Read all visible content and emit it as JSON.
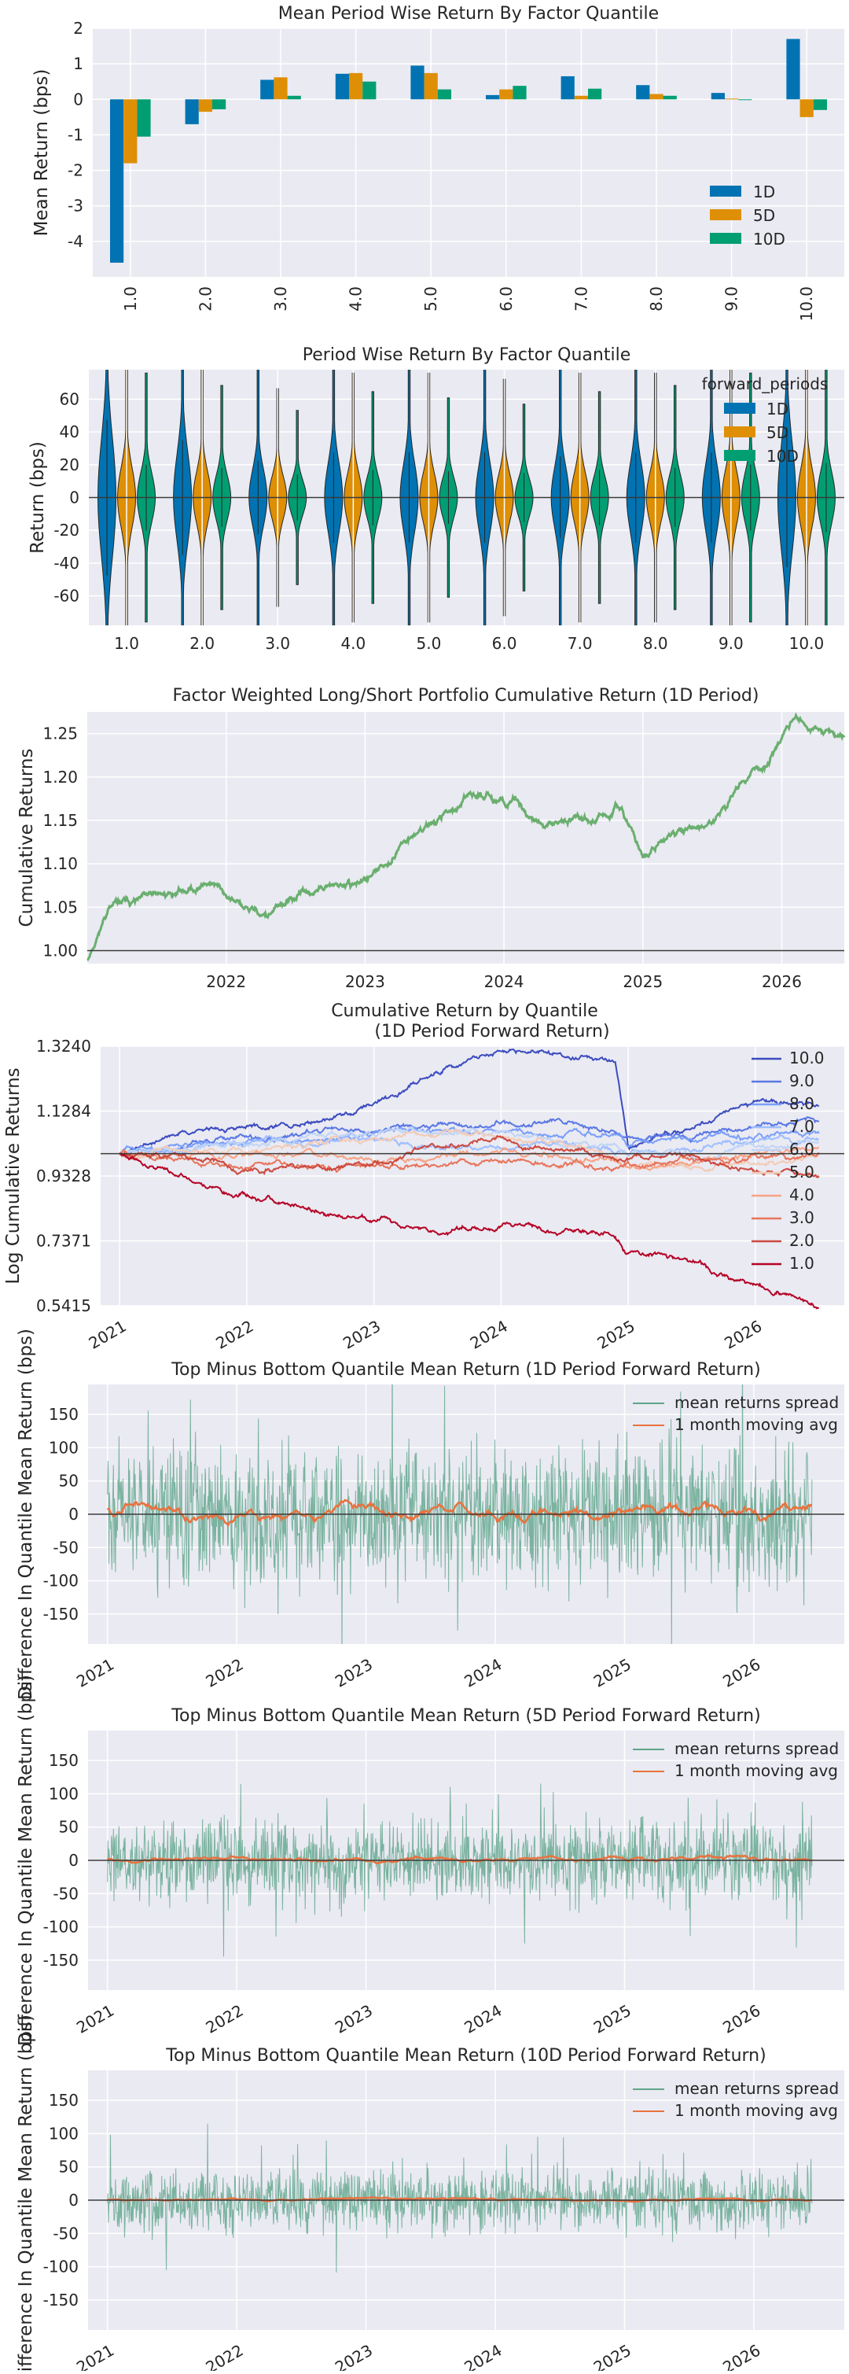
{
  "colors": {
    "panel_bg": "#eaeaf2",
    "grid": "#ffffff",
    "series_1D": "#0173b2",
    "series_5D": "#de8f05",
    "series_10D": "#029e73",
    "cum_line": "#6aaf6f",
    "spread_line": "#5ea58a",
    "ma_line": "#e8723d",
    "zero_line": "#3a3a3a"
  },
  "chart_data": [
    {
      "type": "bar",
      "title": "Mean Period Wise Return By Factor Quantile",
      "xlabel": "",
      "ylabel": "Mean Return (bps)",
      "categories": [
        "1.0",
        "2.0",
        "3.0",
        "4.0",
        "5.0",
        "6.0",
        "7.0",
        "8.0",
        "9.0",
        "10.0"
      ],
      "series": [
        {
          "name": "1D",
          "values": [
            -4.6,
            -0.7,
            0.55,
            0.72,
            0.95,
            0.12,
            0.65,
            0.4,
            0.18,
            1.7
          ]
        },
        {
          "name": "5D",
          "values": [
            -1.8,
            -0.35,
            0.62,
            0.74,
            0.74,
            0.28,
            0.1,
            0.15,
            0.02,
            -0.5
          ]
        },
        {
          "name": "10D",
          "values": [
            -1.05,
            -0.28,
            0.1,
            0.5,
            0.28,
            0.38,
            0.3,
            0.1,
            0.0,
            -0.3
          ]
        }
      ],
      "ylim": [
        -5,
        2
      ],
      "yticks": [
        -4,
        -3,
        -2,
        -1,
        0,
        1,
        2
      ],
      "legend": "bottom-right"
    },
    {
      "type": "violin",
      "title": "Period Wise Return By Factor Quantile",
      "xlabel": "",
      "ylabel": "Return (bps)",
      "legend_title": "forward_periods",
      "categories": [
        "1.0",
        "2.0",
        "3.0",
        "4.0",
        "5.0",
        "6.0",
        "7.0",
        "8.0",
        "9.0",
        "10.0"
      ],
      "series": [
        {
          "name": "1D",
          "spread": [
            95,
            70,
            45,
            55,
            55,
            55,
            50,
            55,
            55,
            85
          ]
        },
        {
          "name": "5D",
          "spread": [
            48,
            42,
            35,
            40,
            40,
            38,
            40,
            40,
            45,
            48
          ]
        },
        {
          "name": "10D",
          "spread": [
            40,
            36,
            28,
            34,
            32,
            30,
            34,
            36,
            40,
            42
          ]
        }
      ],
      "ylim": [
        -78,
        78
      ],
      "yticks": [
        -60,
        -40,
        -20,
        0,
        20,
        40,
        60
      ],
      "legend": "top-right"
    },
    {
      "type": "line",
      "title": "Factor Weighted Long/Short Portfolio Cumulative Return (1D Period)",
      "xlabel": "",
      "ylabel": "Cumulative Returns",
      "xlim": [
        2021.0,
        2026.45
      ],
      "ylim": [
        0.985,
        1.275
      ],
      "xticks": [
        "2022",
        "2023",
        "2024",
        "2025",
        "2026"
      ],
      "yticks": [
        "1.00",
        "1.05",
        "1.10",
        "1.15",
        "1.20",
        "1.25"
      ],
      "x": [
        2021.0,
        2021.15,
        2021.3,
        2021.5,
        2021.7,
        2021.9,
        2022.1,
        2022.3,
        2022.5,
        2022.7,
        2022.9,
        2023.1,
        2023.3,
        2023.5,
        2023.7,
        2023.9,
        2024.1,
        2024.3,
        2024.5,
        2024.7,
        2024.85,
        2025.0,
        2025.2,
        2025.5,
        2025.7,
        2025.9,
        2026.1,
        2026.3,
        2026.45
      ],
      "values": [
        0.99,
        1.05,
        1.055,
        1.06,
        1.07,
        1.08,
        1.05,
        1.04,
        1.06,
        1.07,
        1.075,
        1.09,
        1.13,
        1.15,
        1.17,
        1.18,
        1.17,
        1.14,
        1.16,
        1.15,
        1.16,
        1.11,
        1.13,
        1.15,
        1.19,
        1.22,
        1.27,
        1.25,
        1.245
      ]
    },
    {
      "type": "line",
      "title": "Cumulative Return by Quantile",
      "subtitle": "(1D Period Forward Return)",
      "xlabel": "",
      "ylabel": "Log Cumulative Returns",
      "log_scale": true,
      "xlim": [
        2020.85,
        2026.7
      ],
      "ylim": [
        0.5415,
        1.324
      ],
      "xticks": [
        "2021",
        "2022",
        "2023",
        "2024",
        "2025",
        "2026"
      ],
      "yticks": [
        "0.5415",
        "0.7371",
        "0.9328",
        "1.1284",
        "1.3240"
      ],
      "x": [
        2021.0,
        2021.5,
        2022.0,
        2022.5,
        2023.0,
        2023.5,
        2024.0,
        2024.5,
        2024.9,
        2025.0,
        2025.5,
        2026.0,
        2026.5
      ],
      "series": [
        {
          "name": "10.0",
          "values": [
            1.0,
            1.07,
            1.08,
            1.1,
            1.15,
            1.25,
            1.32,
            1.29,
            1.28,
            1.03,
            1.07,
            1.16,
            1.15
          ]
        },
        {
          "name": "9.0",
          "values": [
            1.0,
            1.03,
            1.04,
            1.06,
            1.07,
            1.09,
            1.08,
            1.1,
            1.06,
            1.04,
            1.06,
            1.09,
            1.1
          ]
        },
        {
          "name": "8.0",
          "values": [
            1.0,
            1.02,
            1.03,
            1.05,
            1.06,
            1.07,
            1.07,
            1.06,
            1.05,
            1.03,
            1.04,
            1.06,
            1.07
          ]
        },
        {
          "name": "7.0",
          "values": [
            1.0,
            1.01,
            1.04,
            1.03,
            1.04,
            1.03,
            1.02,
            1.03,
            1.01,
            1.0,
            1.02,
            1.04,
            1.03
          ]
        },
        {
          "name": "6.0",
          "values": [
            1.0,
            1.02,
            1.03,
            1.05,
            1.06,
            1.07,
            1.06,
            1.04,
            1.02,
            1.0,
            1.0,
            1.02,
            1.03
          ]
        },
        {
          "name": "5.0",
          "values": [
            1.0,
            1.01,
            1.0,
            1.02,
            1.04,
            1.06,
            1.05,
            1.03,
            1.0,
            0.97,
            0.96,
            0.97,
            0.99
          ]
        },
        {
          "name": "4.0",
          "values": [
            1.0,
            0.99,
            1.0,
            1.0,
            0.98,
            0.99,
            1.0,
            0.99,
            0.98,
            0.96,
            0.97,
            0.99,
            1.02
          ]
        },
        {
          "name": "3.0",
          "values": [
            1.0,
            0.98,
            0.97,
            0.96,
            0.96,
            0.97,
            0.98,
            0.97,
            0.96,
            0.97,
            0.98,
            0.99,
            1.0
          ]
        },
        {
          "name": "2.0",
          "values": [
            1.0,
            0.99,
            0.96,
            0.95,
            0.98,
            1.02,
            1.03,
            1.0,
            0.98,
            0.99,
            1.0,
            0.95,
            0.92
          ]
        },
        {
          "name": "1.0",
          "values": [
            1.0,
            0.93,
            0.86,
            0.83,
            0.8,
            0.77,
            0.78,
            0.77,
            0.75,
            0.7,
            0.68,
            0.6,
            0.545
          ]
        }
      ],
      "legend": "top-right"
    },
    {
      "type": "line",
      "title": "Top Minus Bottom Quantile Mean Return (1D Period Forward Return)",
      "xlabel": "",
      "ylabel": "Difference In Quantile Mean Return (bps)",
      "xlim": [
        2020.85,
        2026.7
      ],
      "ylim": [
        -195,
        195
      ],
      "xticks": [
        "2021",
        "2022",
        "2023",
        "2024",
        "2025",
        "2026"
      ],
      "yticks": [
        -150,
        -100,
        -50,
        0,
        50,
        100,
        150
      ],
      "spread_amplitude": 190,
      "ma_amplitude": 30,
      "series": [
        {
          "name": "mean returns spread"
        },
        {
          "name": "1 month moving avg"
        }
      ],
      "legend": "top-right"
    },
    {
      "type": "line",
      "title": "Top Minus Bottom Quantile Mean Return (5D Period Forward Return)",
      "xlabel": "",
      "ylabel": "Difference In Quantile Mean Return (bps)",
      "xlim": [
        2020.85,
        2026.7
      ],
      "ylim": [
        -195,
        195
      ],
      "xticks": [
        "2021",
        "2022",
        "2023",
        "2024",
        "2025",
        "2026"
      ],
      "yticks": [
        -150,
        -100,
        -50,
        0,
        50,
        100,
        150
      ],
      "spread_amplitude": 110,
      "ma_amplitude": 10,
      "series": [
        {
          "name": "mean returns spread"
        },
        {
          "name": "1 month moving avg"
        }
      ],
      "legend": "top-right"
    },
    {
      "type": "line",
      "title": "Top Minus Bottom Quantile Mean Return (10D Period Forward Return)",
      "xlabel": "",
      "ylabel": "Difference In Quantile Mean Return (bps)",
      "xlim": [
        2020.85,
        2026.7
      ],
      "ylim": [
        -195,
        195
      ],
      "xticks": [
        "2021",
        "2022",
        "2023",
        "2024",
        "2025",
        "2026"
      ],
      "yticks": [
        -150,
        -100,
        -50,
        0,
        50,
        100,
        150
      ],
      "spread_amplitude": 85,
      "ma_amplitude": 5,
      "series": [
        {
          "name": "mean returns spread"
        },
        {
          "name": "1 month moving avg"
        }
      ],
      "legend": "top-right"
    }
  ]
}
